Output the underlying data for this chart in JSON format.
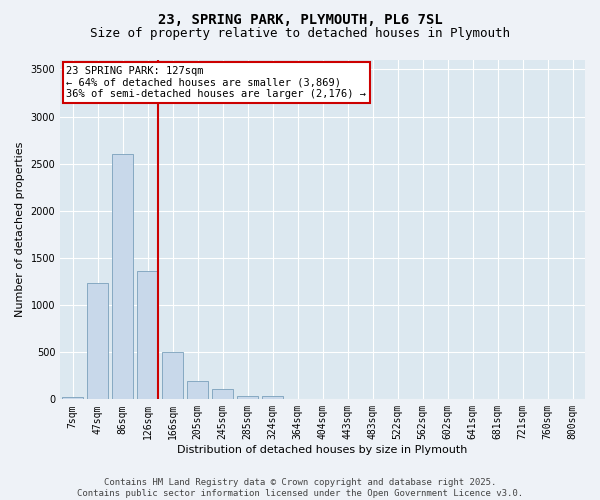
{
  "title_line1": "23, SPRING PARK, PLYMOUTH, PL6 7SL",
  "title_line2": "Size of property relative to detached houses in Plymouth",
  "xlabel": "Distribution of detached houses by size in Plymouth",
  "ylabel": "Number of detached properties",
  "categories": [
    "7sqm",
    "47sqm",
    "86sqm",
    "126sqm",
    "166sqm",
    "205sqm",
    "245sqm",
    "285sqm",
    "324sqm",
    "364sqm",
    "404sqm",
    "443sqm",
    "483sqm",
    "522sqm",
    "562sqm",
    "602sqm",
    "641sqm",
    "681sqm",
    "721sqm",
    "760sqm",
    "800sqm"
  ],
  "values": [
    30,
    1230,
    2600,
    1360,
    500,
    190,
    110,
    40,
    40,
    0,
    0,
    0,
    0,
    0,
    0,
    0,
    0,
    0,
    0,
    0,
    0
  ],
  "bar_color": "#c8d8ea",
  "bar_edge_color": "#7aa0bb",
  "annotation_box_text": "23 SPRING PARK: 127sqm\n← 64% of detached houses are smaller (3,869)\n36% of semi-detached houses are larger (2,176) →",
  "annotation_box_color": "#ffffff",
  "annotation_box_edge_color": "#cc0000",
  "vline_color": "#cc0000",
  "vline_x": 3.42,
  "ylim": [
    0,
    3600
  ],
  "yticks": [
    0,
    500,
    1000,
    1500,
    2000,
    2500,
    3000,
    3500
  ],
  "background_color": "#eef2f7",
  "plot_background_color": "#dce8f0",
  "grid_color": "#ffffff",
  "footer_line1": "Contains HM Land Registry data © Crown copyright and database right 2025.",
  "footer_line2": "Contains public sector information licensed under the Open Government Licence v3.0.",
  "title_fontsize": 10,
  "subtitle_fontsize": 9,
  "axis_label_fontsize": 8,
  "tick_fontsize": 7,
  "annotation_fontsize": 7.5,
  "footer_fontsize": 6.5
}
